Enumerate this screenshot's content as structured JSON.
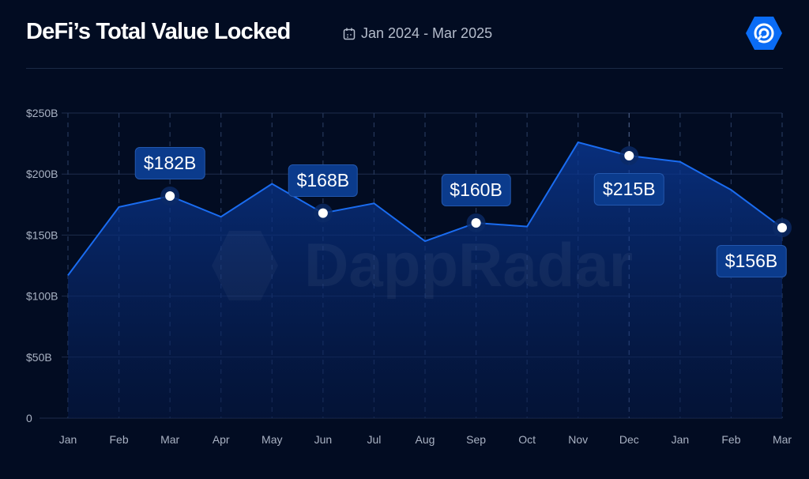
{
  "header": {
    "title": "DeFi’s Total Value Locked",
    "date_range": "Jan 2024 - Mar 2025",
    "calendar_icon": "calendar-icon",
    "logo_icon": "dappradar-logo"
  },
  "watermark": "DappRadar",
  "colors": {
    "background": "#020c22",
    "line": "#1a6cf0",
    "label_bg": "#0b3b8c"
  },
  "chart_data": {
    "type": "area",
    "title": "DeFi’s Total Value Locked",
    "categories": [
      "Jan",
      "Feb",
      "Mar",
      "Apr",
      "May",
      "Jun",
      "Jul",
      "Aug",
      "Sep",
      "Oct",
      "Nov",
      "Dec",
      "Jan",
      "Feb",
      "Mar"
    ],
    "values": [
      117,
      173,
      182,
      165,
      192,
      168,
      176,
      145,
      160,
      157,
      226,
      215,
      210,
      187,
      156
    ],
    "unit": "$B",
    "ylim": [
      0,
      250
    ],
    "yticks": [
      0,
      50,
      100,
      150,
      200,
      250
    ],
    "ytick_labels": [
      "0",
      "$50B",
      "$100B",
      "$150B",
      "$200B",
      "$250B"
    ],
    "grid": true,
    "annotations": [
      {
        "index": 2,
        "label": "$182B",
        "position": "above"
      },
      {
        "index": 5,
        "label": "$168B",
        "position": "above"
      },
      {
        "index": 8,
        "label": "$160B",
        "position": "above"
      },
      {
        "index": 11,
        "label": "$215B",
        "position": "below"
      },
      {
        "index": 14,
        "label": "$156B",
        "position": "below"
      }
    ]
  }
}
